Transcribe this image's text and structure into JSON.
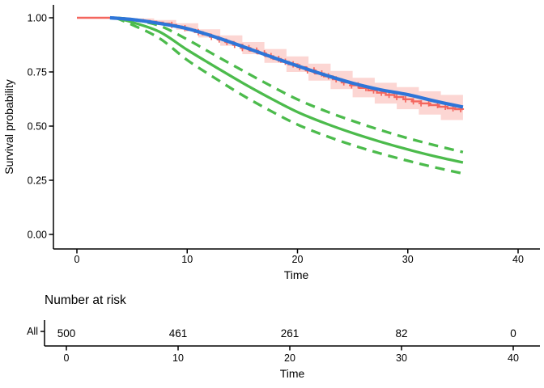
{
  "figure": {
    "background": "#ffffff"
  },
  "chart_data": {
    "type": "line",
    "title": "",
    "xlabel": "Time",
    "ylabel": "Survival probability",
    "xlim": [
      0,
      40
    ],
    "ylim": [
      0,
      1
    ],
    "grid": false,
    "legend": "none",
    "x_tick_values": [
      0,
      10,
      20,
      30,
      40
    ],
    "x_tick_labels": [
      "0",
      "10",
      "20",
      "30",
      "40"
    ],
    "y_tick_values": [
      0,
      0.25,
      0.5,
      0.75,
      1
    ],
    "y_tick_labels": [
      "0.00",
      "0.25",
      "0.50",
      "0.75",
      "1.00"
    ],
    "km_ci_ribbon": {
      "name": "km-confidence-ribbon",
      "color": "#F4665E",
      "opacity": 0.27,
      "t": [
        3,
        5,
        7,
        9,
        11,
        13,
        15,
        17,
        19,
        21,
        23,
        25,
        27,
        29,
        31,
        33,
        35
      ],
      "upper": [
        1.0,
        0.997,
        0.99,
        0.975,
        0.947,
        0.919,
        0.888,
        0.856,
        0.822,
        0.788,
        0.755,
        0.723,
        0.7,
        0.68,
        0.661,
        0.644,
        0.637
      ],
      "lower": [
        1.0,
        0.983,
        0.968,
        0.945,
        0.909,
        0.871,
        0.832,
        0.792,
        0.75,
        0.71,
        0.671,
        0.633,
        0.604,
        0.578,
        0.553,
        0.528,
        0.513
      ]
    },
    "series": [
      {
        "name": "kaplan-meier-estimate",
        "color": "#F4665E",
        "line": "step",
        "width": 2.4,
        "points": [
          [
            0,
            1.0
          ],
          [
            3,
            1.0
          ],
          [
            3.6,
            0.998
          ],
          [
            4.2,
            0.996
          ],
          [
            4.8,
            0.993
          ],
          [
            5.4,
            0.99
          ],
          [
            6.0,
            0.986
          ],
          [
            6.6,
            0.982
          ],
          [
            7.2,
            0.978
          ],
          [
            7.8,
            0.973
          ],
          [
            8.4,
            0.967
          ],
          [
            9.0,
            0.96
          ],
          [
            9.5,
            0.952
          ],
          [
            10,
            0.944
          ],
          [
            10.7,
            0.934
          ],
          [
            11.4,
            0.923
          ],
          [
            12.1,
            0.912
          ],
          [
            12.8,
            0.9
          ],
          [
            13.5,
            0.888
          ],
          [
            14.2,
            0.875
          ],
          [
            15,
            0.86
          ],
          [
            15.7,
            0.848
          ],
          [
            16.4,
            0.836
          ],
          [
            17.1,
            0.823
          ],
          [
            17.8,
            0.81
          ],
          [
            18.5,
            0.797
          ],
          [
            19.2,
            0.785
          ],
          [
            20,
            0.772
          ],
          [
            20.8,
            0.757
          ],
          [
            21.6,
            0.743
          ],
          [
            22.4,
            0.73
          ],
          [
            23.2,
            0.716
          ],
          [
            24,
            0.702
          ],
          [
            24.8,
            0.688
          ],
          [
            25.6,
            0.676
          ],
          [
            26.4,
            0.665
          ],
          [
            27.2,
            0.654
          ],
          [
            28,
            0.644
          ],
          [
            28.8,
            0.634
          ],
          [
            29.6,
            0.624
          ],
          [
            30.4,
            0.614
          ],
          [
            31.2,
            0.605
          ],
          [
            32,
            0.597
          ],
          [
            32.8,
            0.589
          ],
          [
            33.6,
            0.582
          ],
          [
            34.3,
            0.578
          ],
          [
            35,
            0.575
          ]
        ]
      },
      {
        "name": "green-fit-upper-ci",
        "color": "#4CBB4C",
        "line": "dashed",
        "width": 3.3,
        "points": [
          [
            3.5,
            1.0
          ],
          [
            5,
            0.992
          ],
          [
            7.5,
            0.963
          ],
          [
            10,
            0.9
          ],
          [
            12.5,
            0.828
          ],
          [
            15,
            0.757
          ],
          [
            17.5,
            0.688
          ],
          [
            20,
            0.623
          ],
          [
            22.5,
            0.57
          ],
          [
            25,
            0.524
          ],
          [
            27.5,
            0.482
          ],
          [
            30,
            0.444
          ],
          [
            32.5,
            0.411
          ],
          [
            35,
            0.38
          ]
        ]
      },
      {
        "name": "green-fit-lower-ci",
        "color": "#4CBB4C",
        "line": "dashed",
        "width": 3.3,
        "points": [
          [
            3.5,
            1.0
          ],
          [
            5,
            0.968
          ],
          [
            7.5,
            0.905
          ],
          [
            10,
            0.805
          ],
          [
            12.5,
            0.722
          ],
          [
            15,
            0.643
          ],
          [
            17.5,
            0.572
          ],
          [
            20,
            0.507
          ],
          [
            22.5,
            0.456
          ],
          [
            25,
            0.412
          ],
          [
            27.5,
            0.374
          ],
          [
            30,
            0.34
          ],
          [
            32.5,
            0.309
          ],
          [
            35,
            0.281
          ]
        ]
      },
      {
        "name": "green-fit-estimate",
        "color": "#4CBB4C",
        "line": "solid",
        "width": 3.3,
        "points": [
          [
            3.5,
            1.0
          ],
          [
            5,
            0.98
          ],
          [
            7.5,
            0.935
          ],
          [
            10,
            0.852
          ],
          [
            12.5,
            0.775
          ],
          [
            15,
            0.7
          ],
          [
            17.5,
            0.63
          ],
          [
            20,
            0.565
          ],
          [
            22.5,
            0.513
          ],
          [
            25,
            0.468
          ],
          [
            27.5,
            0.428
          ],
          [
            30,
            0.392
          ],
          [
            32.5,
            0.36
          ],
          [
            35,
            0.332
          ]
        ]
      },
      {
        "name": "smooth-fit-blue",
        "color": "#2E75D8",
        "line": "solid",
        "width": 4.2,
        "points": [
          [
            3,
            1.0
          ],
          [
            5,
            0.992
          ],
          [
            7.5,
            0.974
          ],
          [
            10,
            0.95
          ],
          [
            12.5,
            0.912
          ],
          [
            15,
            0.868
          ],
          [
            17.5,
            0.822
          ],
          [
            20,
            0.778
          ],
          [
            22.5,
            0.736
          ],
          [
            25,
            0.698
          ],
          [
            27.5,
            0.668
          ],
          [
            30,
            0.645
          ],
          [
            32.5,
            0.615
          ],
          [
            35,
            0.588
          ]
        ]
      }
    ],
    "censor_marks": {
      "name": "censor-marks",
      "color": "#F4665E",
      "times": [
        8.6,
        9.8,
        11.0,
        12.2,
        12.9,
        13.6,
        14.3,
        15.0,
        15.6,
        16.3,
        17.0,
        17.6,
        18.3,
        18.9,
        19.6,
        20.2,
        20.9,
        21.5,
        22.2,
        22.8,
        23.5,
        24.2,
        24.9,
        25.5,
        26.2,
        26.9,
        27.6,
        28.3,
        29.0,
        29.8,
        30.5,
        31.2,
        31.9,
        32.7,
        33.4,
        34.1,
        34.8
      ]
    }
  },
  "risk_table": {
    "title": "Number at risk",
    "row_label": "All",
    "row_color": "#F4665E",
    "xlabel": "Time",
    "times": [
      0,
      10,
      20,
      30,
      40
    ],
    "time_labels": [
      "0",
      "10",
      "20",
      "30",
      "40"
    ],
    "values": [
      "500",
      "461",
      "261",
      "82",
      "0"
    ]
  }
}
